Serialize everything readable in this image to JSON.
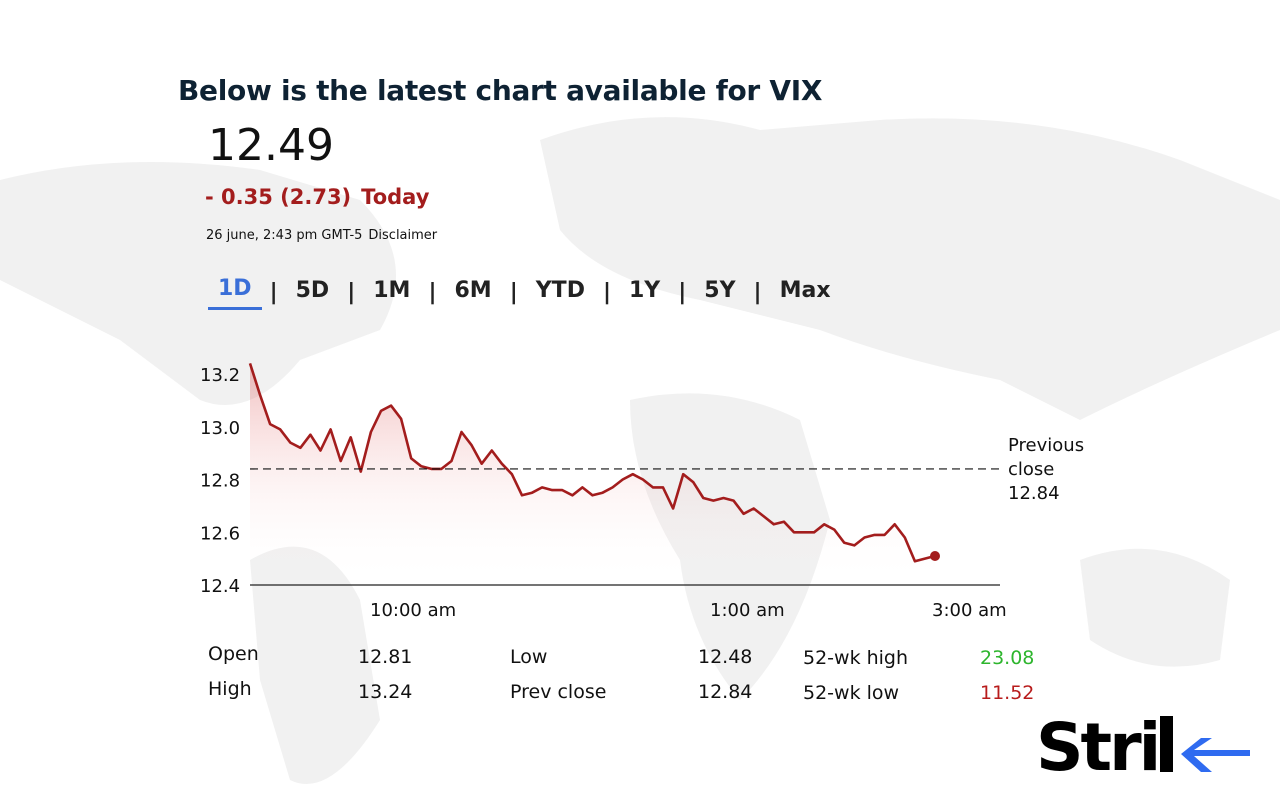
{
  "header": {
    "title": "Below is the latest chart available for VIX",
    "price": "12.49",
    "change": "- 0.35 (2.73)",
    "change_period": "Today",
    "timestamp": "26 june, 2:43 pm GMT-5",
    "disclaimer": "Disclaimer"
  },
  "tabs": [
    {
      "label": "1D",
      "active": true
    },
    {
      "label": "5D"
    },
    {
      "label": "1M"
    },
    {
      "label": "6M"
    },
    {
      "label": "YTD"
    },
    {
      "label": "1Y"
    },
    {
      "label": "5Y"
    },
    {
      "label": "Max"
    }
  ],
  "colors": {
    "line": "#a31d1d",
    "accent": "#3a6fd8",
    "high": "#2db52d",
    "low": "#b81c1c",
    "title": "#0e2233"
  },
  "chart_data": {
    "type": "line",
    "ylim": [
      12.4,
      13.2
    ],
    "yticks": [
      "13.2",
      "13.0",
      "12.8",
      "12.6",
      "12.4"
    ],
    "xticks": [
      "10:00 am",
      "1:00 am",
      "3:00 am"
    ],
    "grid": false,
    "reference_line": {
      "value": 12.84,
      "label_lines": [
        "Previous",
        "close",
        "12.84"
      ]
    },
    "values": [
      13.24,
      13.12,
      13.01,
      12.99,
      12.94,
      12.92,
      12.97,
      12.91,
      12.99,
      12.87,
      12.96,
      12.83,
      12.98,
      13.06,
      13.08,
      13.03,
      12.88,
      12.85,
      12.84,
      12.84,
      12.87,
      12.98,
      12.93,
      12.86,
      12.91,
      12.86,
      12.82,
      12.74,
      12.75,
      12.77,
      12.76,
      12.76,
      12.74,
      12.77,
      12.74,
      12.75,
      12.77,
      12.8,
      12.82,
      12.8,
      12.77,
      12.77,
      12.69,
      12.82,
      12.79,
      12.73,
      12.72,
      12.73,
      12.72,
      12.67,
      12.69,
      12.66,
      12.63,
      12.64,
      12.6,
      12.6,
      12.6,
      12.63,
      12.61,
      12.56,
      12.55,
      12.58,
      12.59,
      12.59,
      12.63,
      12.58,
      12.49,
      12.5,
      12.51
    ]
  },
  "stats": [
    {
      "label": "Open",
      "value": "12.81"
    },
    {
      "label": "High",
      "value": "13.24"
    },
    {
      "label": "Low",
      "value": "12.48"
    },
    {
      "label": "Prev close",
      "value": "12.84"
    },
    {
      "label": "52-wk high",
      "value": "23.08"
    },
    {
      "label": "52-wk low",
      "value": "11.52"
    }
  ],
  "logo": {
    "text": "Strike"
  }
}
